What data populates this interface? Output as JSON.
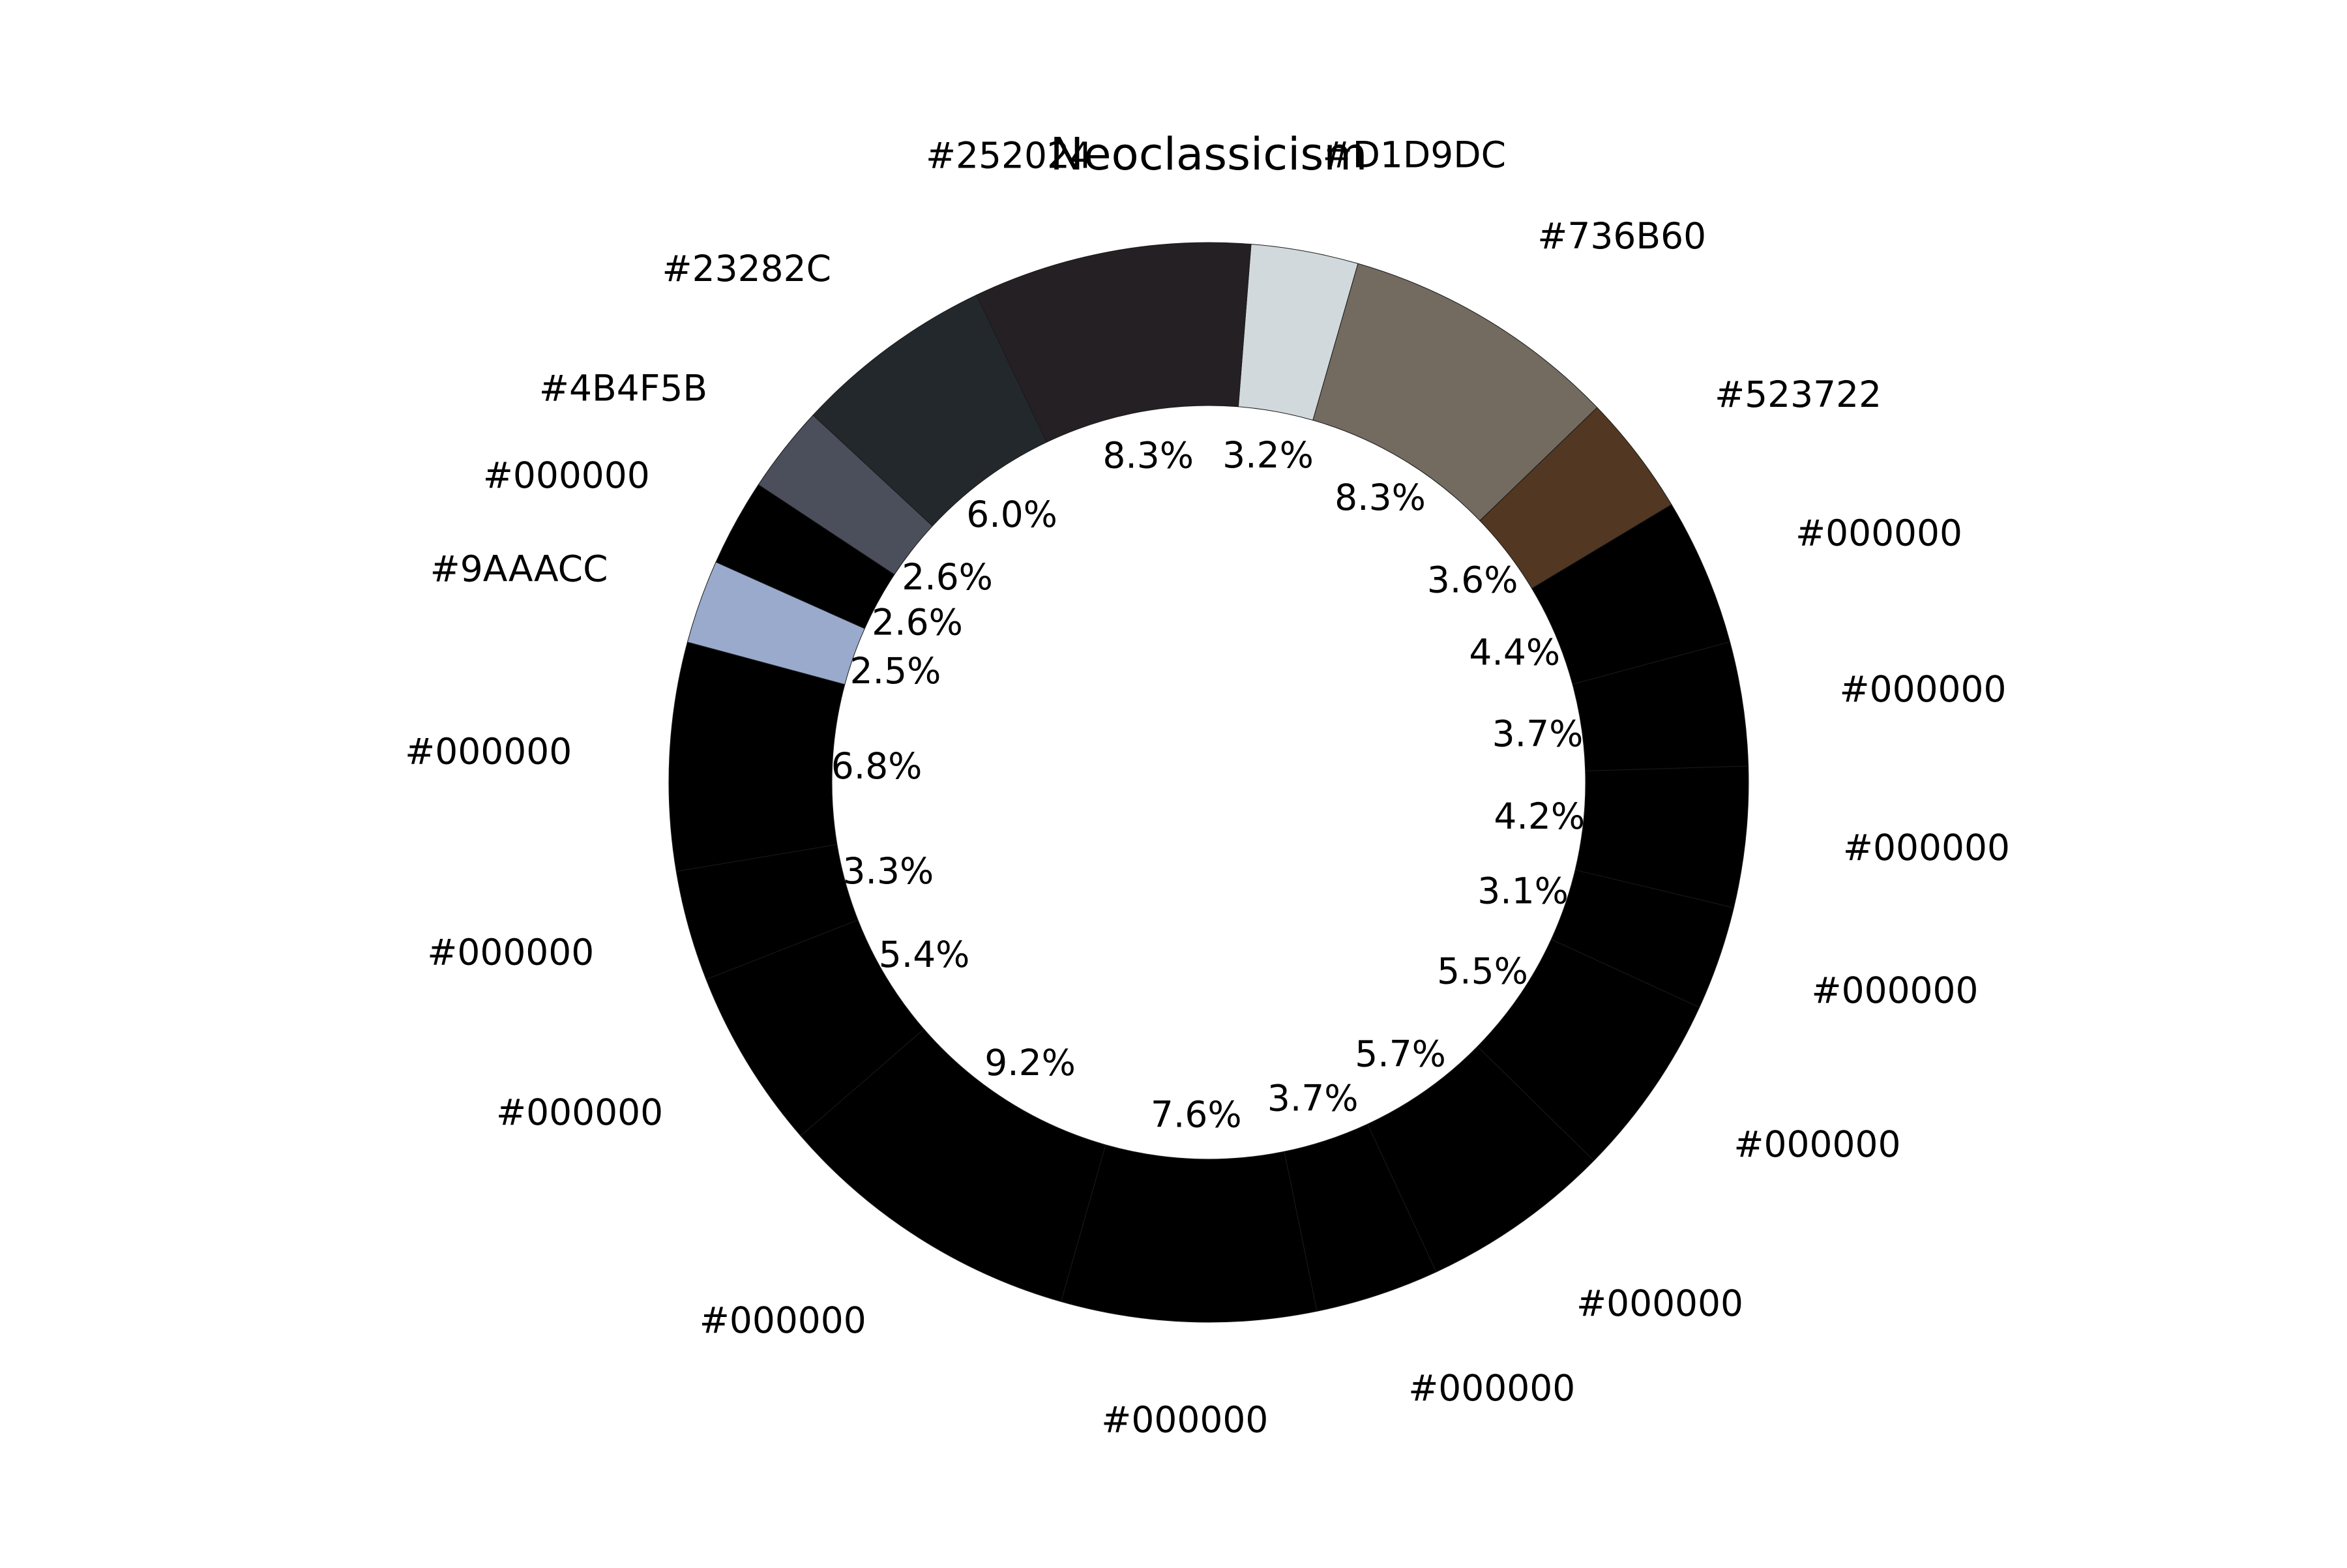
{
  "chart_data": {
    "type": "pie",
    "variant": "donut",
    "title": "Neoclassicism",
    "start_angle_deg": 85.5,
    "direction": "clockwise",
    "legend": "none",
    "slices": [
      {
        "label": "#D1D9DC",
        "value": 3.2,
        "pct": "3.2%",
        "color": "#D1D9DC"
      },
      {
        "label": "#736B60",
        "value": 8.3,
        "pct": "8.3%",
        "color": "#736B60"
      },
      {
        "label": "#523722",
        "value": 3.6,
        "pct": "3.6%",
        "color": "#523722"
      },
      {
        "label": "#000000",
        "value": 4.4,
        "pct": "4.4%",
        "color": "#000000"
      },
      {
        "label": "#000000",
        "value": 3.7,
        "pct": "3.7%",
        "color": "#000000"
      },
      {
        "label": "#000000",
        "value": 4.2,
        "pct": "4.2%",
        "color": "#000000"
      },
      {
        "label": "#000000",
        "value": 3.1,
        "pct": "3.1%",
        "color": "#000000"
      },
      {
        "label": "#000000",
        "value": 5.5,
        "pct": "5.5%",
        "color": "#000000"
      },
      {
        "label": "#000000",
        "value": 5.7,
        "pct": "5.7%",
        "color": "#000000"
      },
      {
        "label": "#000000",
        "value": 3.7,
        "pct": "3.7%",
        "color": "#000000"
      },
      {
        "label": "#000000",
        "value": 7.6,
        "pct": "7.6%",
        "color": "#000000"
      },
      {
        "label": "#000000",
        "value": 9.2,
        "pct": "9.2%",
        "color": "#000000"
      },
      {
        "label": "#000000",
        "value": 5.4,
        "pct": "5.4%",
        "color": "#000000"
      },
      {
        "label": "#000000",
        "value": 3.3,
        "pct": "3.3%",
        "color": "#000000"
      },
      {
        "label": "#000000",
        "value": 6.8,
        "pct": "6.8%",
        "color": "#000000"
      },
      {
        "label": "#9AAACC",
        "value": 2.5,
        "pct": "2.5%",
        "color": "#9AAACC"
      },
      {
        "label": "#000000",
        "value": 2.6,
        "pct": "2.6%",
        "color": "#000000"
      },
      {
        "label": "#4B4F5B",
        "value": 2.6,
        "pct": "2.6%",
        "color": "#4B4F5B"
      },
      {
        "label": "#23282C",
        "value": 6.0,
        "pct": "6.0%",
        "color": "#23282C"
      },
      {
        "label": "#252024",
        "value": 8.3,
        "pct": "8.3%",
        "color": "#252024"
      }
    ]
  }
}
